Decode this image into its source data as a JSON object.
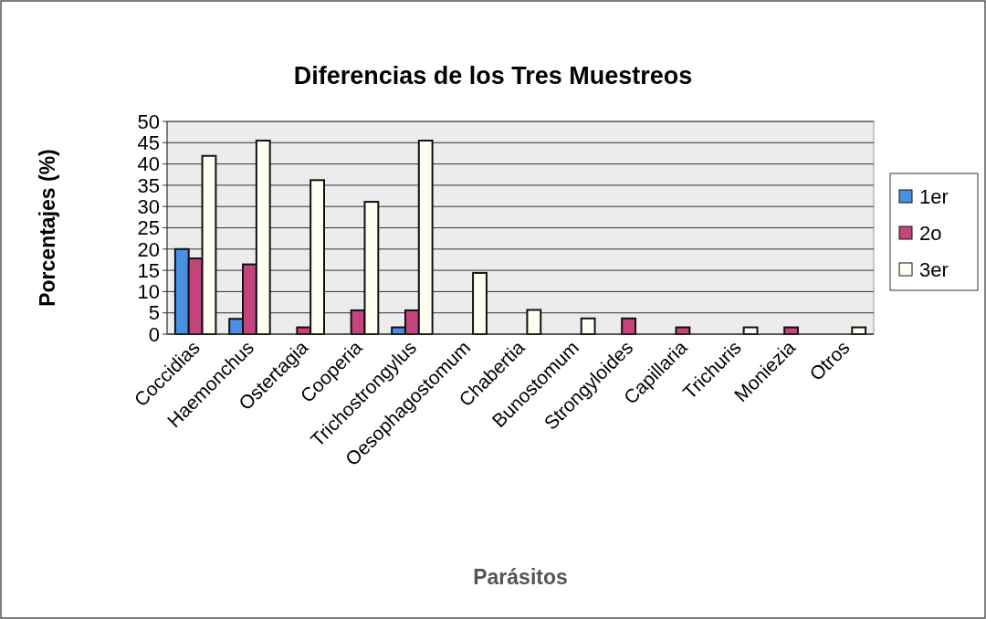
{
  "chart_data": {
    "type": "bar",
    "title": "Diferencias de los Tres Muestreos",
    "xlabel": "Parásitos",
    "ylabel": "Porcentajes (%)",
    "categories": [
      "Coccidias",
      "Haemonchus",
      "Ostertagia",
      "Cooperia",
      "Trichostrongylus",
      "Oesophagostomum",
      "Chabertia",
      "Bunostomum",
      "Strongyloides",
      "Capillaria",
      "Trichuris",
      "Moniezia",
      "Otros"
    ],
    "series": [
      {
        "name": "1er",
        "color": "#4a90e2",
        "values": [
          20,
          3.6,
          0,
          0,
          1.6,
          0,
          0,
          0,
          0,
          0,
          0,
          0,
          0
        ]
      },
      {
        "name": "2o",
        "color": "#c4457c",
        "values": [
          17.8,
          16.4,
          1.6,
          5.6,
          5.6,
          0,
          0,
          0,
          3.7,
          1.6,
          0,
          1.6,
          0
        ]
      },
      {
        "name": "3er",
        "color": "#fffff2",
        "values": [
          41.9,
          45.5,
          36.2,
          31.1,
          45.5,
          14.4,
          5.7,
          3.7,
          0,
          0,
          1.6,
          0,
          1.6
        ]
      }
    ],
    "ylim": [
      0,
      50
    ],
    "yticks": [
      0,
      5,
      10,
      15,
      20,
      25,
      30,
      35,
      40,
      45,
      50
    ],
    "grid": "y",
    "legend": "right"
  }
}
